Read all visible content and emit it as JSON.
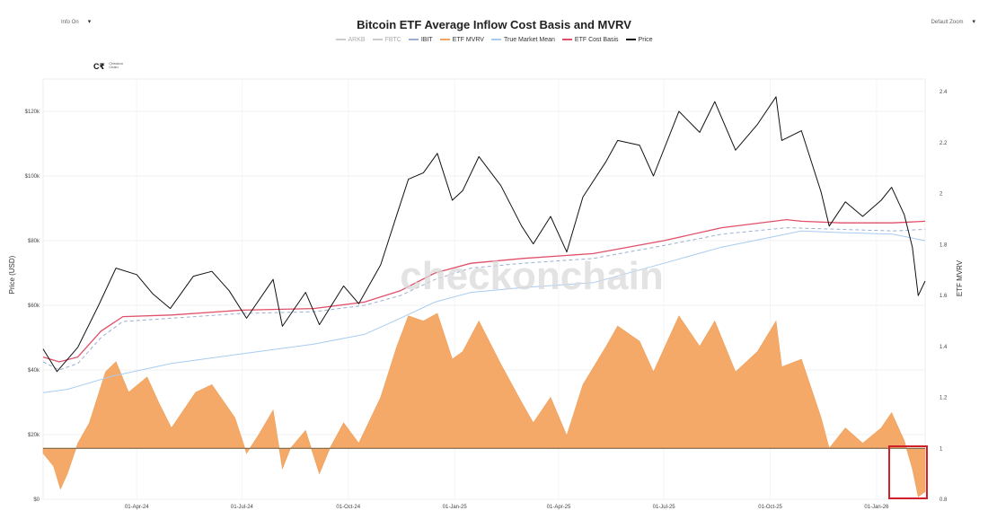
{
  "toolbar": {
    "left_label": "Info On",
    "right_label": "Default Zoom"
  },
  "logo": {
    "line1": "Checkon",
    "line2": "Chain"
  },
  "watermark": "checkonchain",
  "chart_data": {
    "type": "line",
    "title": "Bitcoin ETF Average Inflow Cost Basis and MVRV",
    "ylabel_left": "Price (USD)",
    "ylabel_right": "ETF MVRV",
    "yscale_left": "linear",
    "ylim_left": [
      0,
      130000
    ],
    "ylim_right": [
      0.8,
      2.45
    ],
    "left_ticks": [
      "$0",
      "$20k",
      "$40k",
      "$60k",
      "$80k",
      "$100k",
      "$120k"
    ],
    "right_ticks": [
      "0.8",
      "1",
      "1.2",
      "1.4",
      "1.6",
      "1.8",
      "2",
      "2.2",
      "2.4"
    ],
    "x_ticks": [
      "01-Apr-24",
      "01-Jul-24",
      "01-Oct-24",
      "01-Jan-25",
      "01-Apr-25",
      "01-Jul-25",
      "01-Oct-25",
      "01-Jan-26"
    ],
    "x_range": [
      "2024-01-11",
      "2026-02-12"
    ],
    "mvrv_baseline": 1,
    "legend": [
      {
        "name": "ARKB",
        "color": "#cccccc",
        "dash": false,
        "visible": false
      },
      {
        "name": "FBTC",
        "color": "#cccccc",
        "dash": false,
        "visible": false
      },
      {
        "name": "IBIT",
        "color": "#9bb0d0",
        "dash": true,
        "visible": true
      },
      {
        "name": "ETF MVRV",
        "color": "#f4a460",
        "dash": false,
        "visible": true
      },
      {
        "name": "True Market Mean",
        "color": "#a8ccf0",
        "dash": false,
        "visible": true
      },
      {
        "name": "ETF Cost Basis",
        "color": "#e0506a",
        "dash": false,
        "visible": true
      },
      {
        "name": "Price",
        "color": "#111111",
        "dash": false,
        "visible": true
      }
    ],
    "series": [
      {
        "name": "Price",
        "points": [
          [
            "2024-01-11",
            46500
          ],
          [
            "2024-01-23",
            39500
          ],
          [
            "2024-02-10",
            47000
          ],
          [
            "2024-02-28",
            60000
          ],
          [
            "2024-03-14",
            71500
          ],
          [
            "2024-04-01",
            69500
          ],
          [
            "2024-04-15",
            63500
          ],
          [
            "2024-04-30",
            59000
          ],
          [
            "2024-05-20",
            69000
          ],
          [
            "2024-06-05",
            70500
          ],
          [
            "2024-06-20",
            64500
          ],
          [
            "2024-07-05",
            56000
          ],
          [
            "2024-07-28",
            68000
          ],
          [
            "2024-08-05",
            53500
          ],
          [
            "2024-08-25",
            64000
          ],
          [
            "2024-09-06",
            54000
          ],
          [
            "2024-09-27",
            66000
          ],
          [
            "2024-10-10",
            60500
          ],
          [
            "2024-10-29",
            72500
          ],
          [
            "2024-11-12",
            88000
          ],
          [
            "2024-11-22",
            99000
          ],
          [
            "2024-12-05",
            101000
          ],
          [
            "2024-12-17",
            107000
          ],
          [
            "2024-12-30",
            92500
          ],
          [
            "2025-01-08",
            95500
          ],
          [
            "2025-01-22",
            106000
          ],
          [
            "2025-02-10",
            97000
          ],
          [
            "2025-02-28",
            84500
          ],
          [
            "2025-03-10",
            79000
          ],
          [
            "2025-03-25",
            87500
          ],
          [
            "2025-04-08",
            76500
          ],
          [
            "2025-04-22",
            93500
          ],
          [
            "2025-05-12",
            104500
          ],
          [
            "2025-05-22",
            111000
          ],
          [
            "2025-06-10",
            109500
          ],
          [
            "2025-06-22",
            100000
          ],
          [
            "2025-07-14",
            120000
          ],
          [
            "2025-08-01",
            113500
          ],
          [
            "2025-08-14",
            123000
          ],
          [
            "2025-09-01",
            108000
          ],
          [
            "2025-09-20",
            116000
          ],
          [
            "2025-10-06",
            124500
          ],
          [
            "2025-10-11",
            111000
          ],
          [
            "2025-10-28",
            114000
          ],
          [
            "2025-11-14",
            95000
          ],
          [
            "2025-11-21",
            84500
          ],
          [
            "2025-12-05",
            92000
          ],
          [
            "2025-12-20",
            87500
          ],
          [
            "2026-01-05",
            92500
          ],
          [
            "2026-01-14",
            96500
          ],
          [
            "2026-01-25",
            88000
          ],
          [
            "2026-02-01",
            78000
          ],
          [
            "2026-02-06",
            63000
          ],
          [
            "2026-02-12",
            67500
          ]
        ]
      },
      {
        "name": "ETF Cost Basis",
        "points": [
          [
            "2024-01-11",
            44000
          ],
          [
            "2024-01-25",
            42500
          ],
          [
            "2024-02-10",
            44000
          ],
          [
            "2024-03-01",
            52000
          ],
          [
            "2024-03-20",
            56500
          ],
          [
            "2024-05-01",
            57000
          ],
          [
            "2024-07-01",
            58500
          ],
          [
            "2024-09-01",
            59000
          ],
          [
            "2024-10-15",
            61000
          ],
          [
            "2024-11-15",
            64500
          ],
          [
            "2024-12-15",
            70000
          ],
          [
            "2025-01-15",
            73000
          ],
          [
            "2025-03-01",
            74500
          ],
          [
            "2025-05-01",
            76000
          ],
          [
            "2025-07-01",
            80000
          ],
          [
            "2025-08-20",
            84000
          ],
          [
            "2025-10-15",
            86500
          ],
          [
            "2025-10-28",
            86000
          ],
          [
            "2025-12-01",
            85500
          ],
          [
            "2026-01-15",
            85500
          ],
          [
            "2026-02-12",
            86000
          ]
        ]
      },
      {
        "name": "IBIT",
        "points": [
          [
            "2024-01-11",
            42500
          ],
          [
            "2024-01-25",
            40000
          ],
          [
            "2024-02-10",
            42000
          ],
          [
            "2024-03-01",
            50000
          ],
          [
            "2024-03-20",
            55000
          ],
          [
            "2024-05-01",
            56000
          ],
          [
            "2024-07-01",
            57500
          ],
          [
            "2024-09-01",
            58000
          ],
          [
            "2024-10-15",
            60000
          ],
          [
            "2024-11-15",
            63000
          ],
          [
            "2024-12-15",
            68000
          ],
          [
            "2025-01-15",
            71500
          ],
          [
            "2025-03-01",
            73000
          ],
          [
            "2025-05-01",
            74500
          ],
          [
            "2025-07-01",
            78500
          ],
          [
            "2025-08-20",
            82000
          ],
          [
            "2025-10-15",
            84000
          ],
          [
            "2025-12-01",
            83500
          ],
          [
            "2026-01-15",
            83000
          ],
          [
            "2026-02-12",
            83500
          ]
        ]
      },
      {
        "name": "True Market Mean",
        "points": [
          [
            "2024-01-11",
            33000
          ],
          [
            "2024-02-01",
            34000
          ],
          [
            "2024-03-10",
            38000
          ],
          [
            "2024-05-01",
            42000
          ],
          [
            "2024-07-01",
            45000
          ],
          [
            "2024-09-01",
            48000
          ],
          [
            "2024-10-15",
            51000
          ],
          [
            "2024-11-15",
            56000
          ],
          [
            "2024-12-15",
            61000
          ],
          [
            "2025-01-15",
            64000
          ],
          [
            "2025-03-01",
            65500
          ],
          [
            "2025-05-01",
            67000
          ],
          [
            "2025-07-01",
            73000
          ],
          [
            "2025-08-20",
            78000
          ],
          [
            "2025-10-01",
            81000
          ],
          [
            "2025-10-28",
            83000
          ],
          [
            "2025-12-01",
            82500
          ],
          [
            "2026-01-15",
            82000
          ],
          [
            "2026-02-12",
            80000
          ]
        ]
      },
      {
        "name": "ETF MVRV",
        "points": [
          [
            "2024-01-11",
            0.98
          ],
          [
            "2024-01-20",
            0.93
          ],
          [
            "2024-01-26",
            0.84
          ],
          [
            "2024-02-01",
            0.9
          ],
          [
            "2024-02-10",
            1.02
          ],
          [
            "2024-02-20",
            1.1
          ],
          [
            "2024-03-05",
            1.3
          ],
          [
            "2024-03-14",
            1.34
          ],
          [
            "2024-03-25",
            1.22
          ],
          [
            "2024-04-10",
            1.28
          ],
          [
            "2024-04-20",
            1.18
          ],
          [
            "2024-05-01",
            1.08
          ],
          [
            "2024-05-22",
            1.22
          ],
          [
            "2024-06-05",
            1.25
          ],
          [
            "2024-06-25",
            1.12
          ],
          [
            "2024-07-05",
            0.98
          ],
          [
            "2024-07-15",
            1.05
          ],
          [
            "2024-07-28",
            1.15
          ],
          [
            "2024-08-05",
            0.92
          ],
          [
            "2024-08-12",
            1.0
          ],
          [
            "2024-08-25",
            1.07
          ],
          [
            "2024-09-06",
            0.9
          ],
          [
            "2024-09-15",
            1.0
          ],
          [
            "2024-09-27",
            1.1
          ],
          [
            "2024-10-10",
            1.02
          ],
          [
            "2024-10-29",
            1.2
          ],
          [
            "2024-11-12",
            1.4
          ],
          [
            "2024-11-22",
            1.52
          ],
          [
            "2024-12-05",
            1.5
          ],
          [
            "2024-12-17",
            1.53
          ],
          [
            "2024-12-30",
            1.35
          ],
          [
            "2025-01-08",
            1.38
          ],
          [
            "2025-01-22",
            1.5
          ],
          [
            "2025-02-10",
            1.33
          ],
          [
            "2025-02-28",
            1.18
          ],
          [
            "2025-03-10",
            1.1
          ],
          [
            "2025-03-25",
            1.2
          ],
          [
            "2025-04-08",
            1.05
          ],
          [
            "2025-04-22",
            1.25
          ],
          [
            "2025-05-12",
            1.4
          ],
          [
            "2025-05-22",
            1.48
          ],
          [
            "2025-06-10",
            1.42
          ],
          [
            "2025-06-22",
            1.3
          ],
          [
            "2025-07-14",
            1.52
          ],
          [
            "2025-08-01",
            1.4
          ],
          [
            "2025-08-14",
            1.5
          ],
          [
            "2025-09-01",
            1.3
          ],
          [
            "2025-09-20",
            1.38
          ],
          [
            "2025-10-06",
            1.5
          ],
          [
            "2025-10-11",
            1.32
          ],
          [
            "2025-10-28",
            1.35
          ],
          [
            "2025-11-14",
            1.12
          ],
          [
            "2025-11-21",
            1.0
          ],
          [
            "2025-12-05",
            1.08
          ],
          [
            "2025-12-20",
            1.02
          ],
          [
            "2026-01-05",
            1.08
          ],
          [
            "2026-01-14",
            1.14
          ],
          [
            "2026-01-25",
            1.03
          ],
          [
            "2026-02-01",
            0.92
          ],
          [
            "2026-02-06",
            0.81
          ],
          [
            "2026-02-12",
            0.83
          ]
        ]
      }
    ]
  }
}
